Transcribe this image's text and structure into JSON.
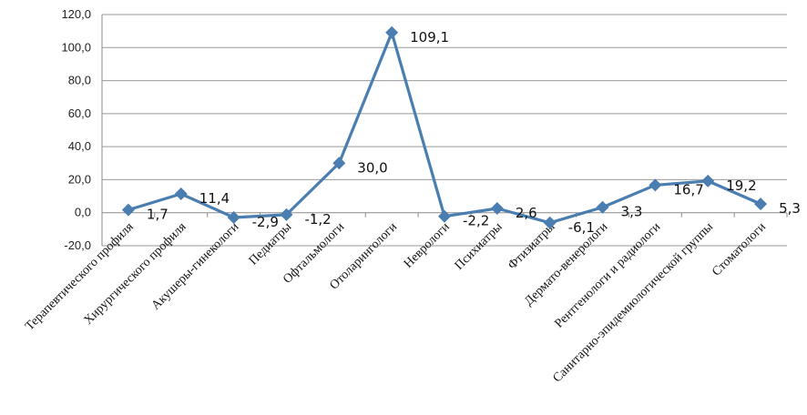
{
  "chart_data": {
    "type": "line",
    "title": "",
    "xlabel": "",
    "ylabel": "",
    "ylim": [
      -20,
      120
    ],
    "y_ticks": [
      "-20,0",
      "0,0",
      "20,0",
      "40,0",
      "60,0",
      "80,0",
      "100,0",
      "120,0"
    ],
    "grid": true,
    "legend": "none",
    "colors": {
      "series": "#4a7eb0",
      "grid": "#9a9a9a"
    },
    "categories": [
      "Терапевтического профиля",
      "Хирургического профиля",
      "Акушеры-гинекологи",
      "Педиатры",
      "Офтальмологи",
      "Отоларингологи",
      "Неврологи",
      "Психиатры",
      "Фтизиатры",
      "Дермато-венерологи",
      "Рентгенологи и радиологи",
      "Санитарно-эпидемиологической группы",
      "Стоматологи"
    ],
    "series": [
      {
        "values": [
          1.7,
          11.4,
          -2.9,
          -1.2,
          30.0,
          109.1,
          -2.2,
          2.6,
          -6.1,
          3.3,
          16.7,
          19.2,
          5.3
        ],
        "labels": [
          "1,7",
          "11,4",
          "-2,9",
          "-1,2",
          "30,0",
          "109,1",
          "-2,2",
          "2,6",
          "-6,1",
          "3,3",
          "16,7",
          "19,2",
          "5,3"
        ]
      }
    ]
  }
}
